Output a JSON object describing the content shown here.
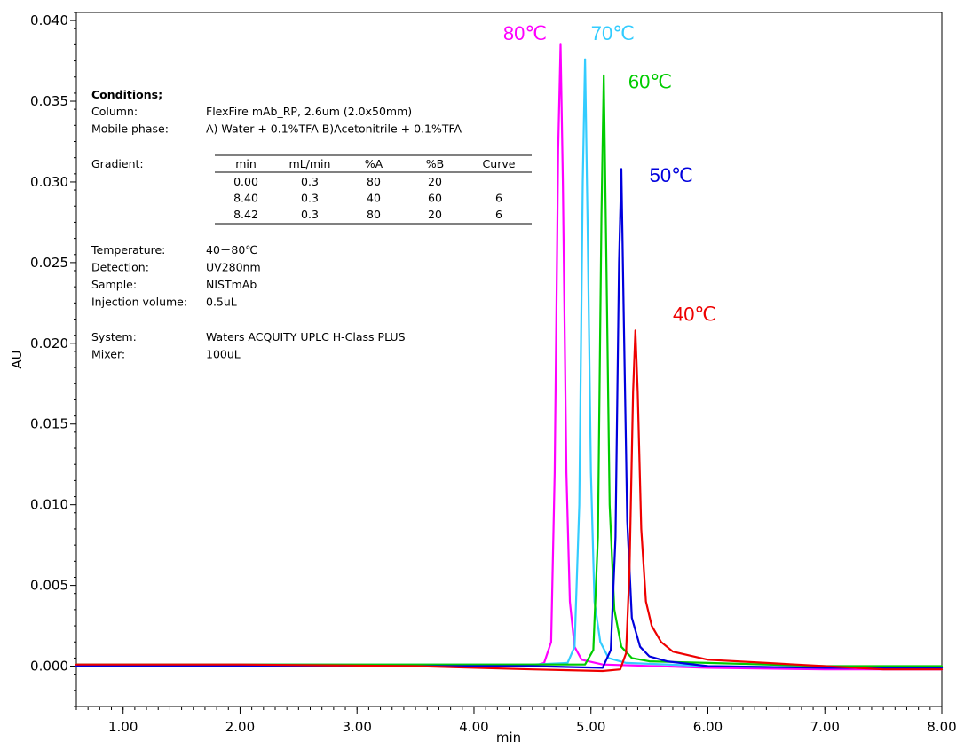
{
  "chart_data": {
    "type": "line",
    "xlabel": "min",
    "ylabel": "AU",
    "xlim": [
      0.6,
      8.0
    ],
    "ylim": [
      -0.0025,
      0.0405
    ],
    "x_ticks": [
      1.0,
      2.0,
      3.0,
      4.0,
      5.0,
      6.0,
      7.0,
      8.0
    ],
    "x_tick_labels": [
      "1.00",
      "2.00",
      "3.00",
      "4.00",
      "5.00",
      "6.00",
      "7.00",
      "8.00"
    ],
    "y_ticks": [
      0.0,
      0.005,
      0.01,
      0.015,
      0.02,
      0.025,
      0.03,
      0.035,
      0.04
    ],
    "y_tick_labels": [
      "0.000",
      "0.005",
      "0.010",
      "0.015",
      "0.020",
      "0.025",
      "0.030",
      "0.035",
      "0.040"
    ],
    "grid": false,
    "series": [
      {
        "name": "80℃",
        "color": "#ff00ff",
        "x": [
          0.6,
          2.0,
          3.5,
          4.5,
          4.6,
          4.66,
          4.69,
          4.72,
          4.74,
          4.76,
          4.79,
          4.82,
          4.86,
          4.92,
          5.1,
          6.0,
          7.0,
          8.0
        ],
        "y": [
          0.0,
          0.0,
          0.0,
          0.0,
          0.0002,
          0.0015,
          0.012,
          0.032,
          0.0385,
          0.03,
          0.012,
          0.004,
          0.0012,
          0.0004,
          0.0001,
          -0.0001,
          -0.0002,
          -0.0002
        ]
      },
      {
        "name": "70℃",
        "color": "#33ccff",
        "x": [
          0.6,
          2.0,
          3.5,
          4.5,
          4.8,
          4.86,
          4.9,
          4.93,
          4.95,
          4.97,
          5.0,
          5.03,
          5.08,
          5.15,
          5.3,
          6.0,
          7.0,
          8.0
        ],
        "y": [
          0.0001,
          0.0001,
          0.0001,
          0.0001,
          0.0002,
          0.0012,
          0.01,
          0.03,
          0.0376,
          0.028,
          0.012,
          0.004,
          0.0015,
          0.0005,
          0.0002,
          0.0,
          -0.0001,
          -0.0001
        ]
      },
      {
        "name": "60℃",
        "color": "#00cc00",
        "x": [
          0.6,
          2.0,
          3.5,
          4.5,
          4.95,
          5.02,
          5.06,
          5.09,
          5.11,
          5.13,
          5.16,
          5.2,
          5.26,
          5.35,
          5.5,
          6.0,
          7.0,
          8.0
        ],
        "y": [
          0.0001,
          0.0001,
          0.0001,
          0.0001,
          0.0001,
          0.001,
          0.008,
          0.028,
          0.0366,
          0.026,
          0.01,
          0.0035,
          0.0012,
          0.0005,
          0.0003,
          0.0002,
          0.0,
          0.0
        ]
      },
      {
        "name": "50℃",
        "color": "#0000dd",
        "x": [
          0.6,
          2.0,
          3.5,
          4.5,
          5.1,
          5.17,
          5.21,
          5.24,
          5.26,
          5.28,
          5.31,
          5.35,
          5.42,
          5.5,
          5.65,
          6.0,
          7.0,
          8.0
        ],
        "y": [
          0.0,
          0.0,
          0.0,
          0.0,
          -0.0001,
          0.001,
          0.008,
          0.025,
          0.0308,
          0.022,
          0.009,
          0.003,
          0.0012,
          0.0006,
          0.0003,
          0.0,
          -0.0001,
          -0.0001
        ]
      },
      {
        "name": "40℃",
        "color": "#ee0000",
        "x": [
          0.6,
          2.0,
          3.5,
          4.5,
          5.1,
          5.25,
          5.3,
          5.33,
          5.36,
          5.38,
          5.4,
          5.43,
          5.47,
          5.52,
          5.6,
          5.7,
          6.0,
          6.5,
          7.0,
          7.5,
          8.0
        ],
        "y": [
          0.0001,
          0.0001,
          0.0,
          -0.0002,
          -0.0003,
          -0.0002,
          0.0008,
          0.006,
          0.017,
          0.0208,
          0.017,
          0.0085,
          0.004,
          0.0025,
          0.0015,
          0.0009,
          0.0004,
          0.0002,
          0.0,
          -0.0002,
          -0.0002
        ]
      }
    ],
    "series_labels": [
      {
        "text": "80℃",
        "color": "#ff00ff",
        "x": 4.25,
        "y": 0.0388
      },
      {
        "text": "70℃",
        "color": "#33ccff",
        "x": 5.0,
        "y": 0.0388
      },
      {
        "text": "60℃",
        "color": "#00cc00",
        "x": 5.32,
        "y": 0.0358
      },
      {
        "text": "50℃",
        "color": "#0000dd",
        "x": 5.5,
        "y": 0.03
      },
      {
        "text": "40℃",
        "color": "#ee0000",
        "x": 5.7,
        "y": 0.0214
      }
    ],
    "conditions": {
      "title": "Conditions;",
      "rows_top": [
        {
          "label": "Column:",
          "value": "FlexFire mAb_RP, 2.6um (2.0x50mm)"
        },
        {
          "label": "Mobile phase:",
          "value": "A) Water + 0.1%TFA   B)Acetonitrile + 0.1%TFA"
        }
      ],
      "gradient_label": "Gradient:",
      "gradient_headers": [
        "min",
        "mL/min",
        "%A",
        "%B",
        "Curve"
      ],
      "gradient_rows": [
        [
          "0.00",
          "0.3",
          "80",
          "20",
          ""
        ],
        [
          "8.40",
          "0.3",
          "40",
          "60",
          "6"
        ],
        [
          "8.42",
          "0.3",
          "80",
          "20",
          "6"
        ]
      ],
      "rows_mid": [
        {
          "label": "Temperature:",
          "value": "40－80℃"
        },
        {
          "label": "Detection:",
          "value": "UV280nm"
        },
        {
          "label": "Sample:",
          "value": "NISTmAb"
        },
        {
          "label": "Injection volume:",
          "value": "0.5uL"
        }
      ],
      "rows_bottom": [
        {
          "label": "System:",
          "value": "Waters ACQUITY UPLC H-Class PLUS"
        },
        {
          "label": "Mixer:",
          "value": "100uL"
        }
      ]
    }
  }
}
